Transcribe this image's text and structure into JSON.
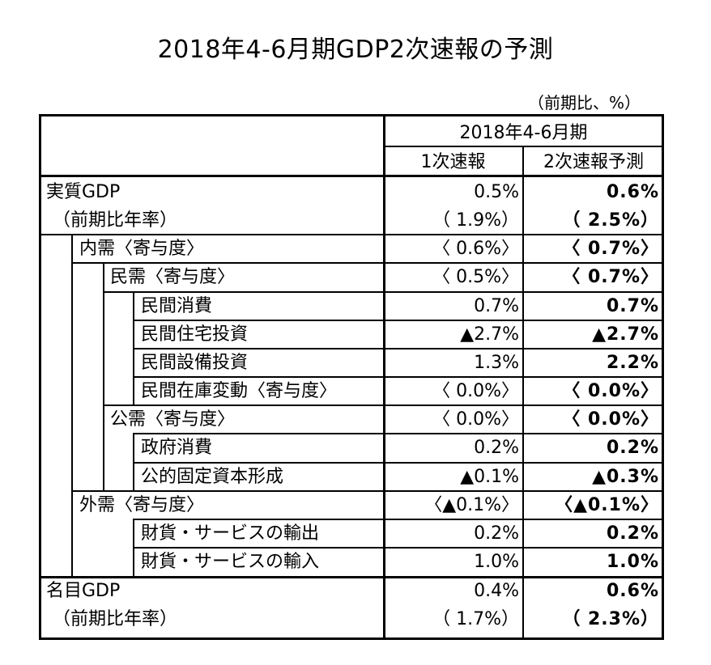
{
  "title": "2018年4-6月期GDP2次速報の予測",
  "unit_note": "（前期比、%）",
  "header": {
    "period": "2018年4-6月期",
    "col1": "1次速報",
    "col2": "2次速報予測"
  },
  "rows": [
    {
      "label": "実質GDP",
      "v1": "0.5%",
      "v2": "0.6%"
    },
    {
      "label": "（前期比年率）",
      "v1": "（ 1.9%）",
      "v2": "（ 2.5%）"
    },
    {
      "label": "内需〈寄与度〉",
      "v1": "〈 0.6%〉",
      "v2": "〈 0.7%〉"
    },
    {
      "label": "民需〈寄与度〉",
      "v1": "〈 0.5%〉",
      "v2": "〈 0.7%〉"
    },
    {
      "label": "民間消費",
      "v1": "0.7%",
      "v2": "0.7%"
    },
    {
      "label": "民間住宅投資",
      "v1": "▲2.7%",
      "v2": "▲2.7%"
    },
    {
      "label": "民間設備投資",
      "v1": "1.3%",
      "v2": "2.2%"
    },
    {
      "label": "民間在庫変動〈寄与度〉",
      "v1": "〈 0.0%〉",
      "v2": "〈 0.0%〉"
    },
    {
      "label": "公需〈寄与度〉",
      "v1": "〈 0.0%〉",
      "v2": "〈 0.0%〉"
    },
    {
      "label": "政府消費",
      "v1": "0.2%",
      "v2": "0.2%"
    },
    {
      "label": "公的固定資本形成",
      "v1": "▲0.1%",
      "v2": "▲0.3%"
    },
    {
      "label": "外需〈寄与度〉",
      "v1": "〈▲0.1%〉",
      "v2": "〈▲0.1%〉"
    },
    {
      "label": "財貨・サービスの輸出",
      "v1": "0.2%",
      "v2": "0.2%"
    },
    {
      "label": "財貨・サービスの輸入",
      "v1": "1.0%",
      "v2": "1.0%"
    },
    {
      "label": "名目GDP",
      "v1": "0.4%",
      "v2": "0.6%"
    },
    {
      "label": "（前期比年率）",
      "v1": "（ 1.7%）",
      "v2": "（ 2.3%）"
    }
  ]
}
